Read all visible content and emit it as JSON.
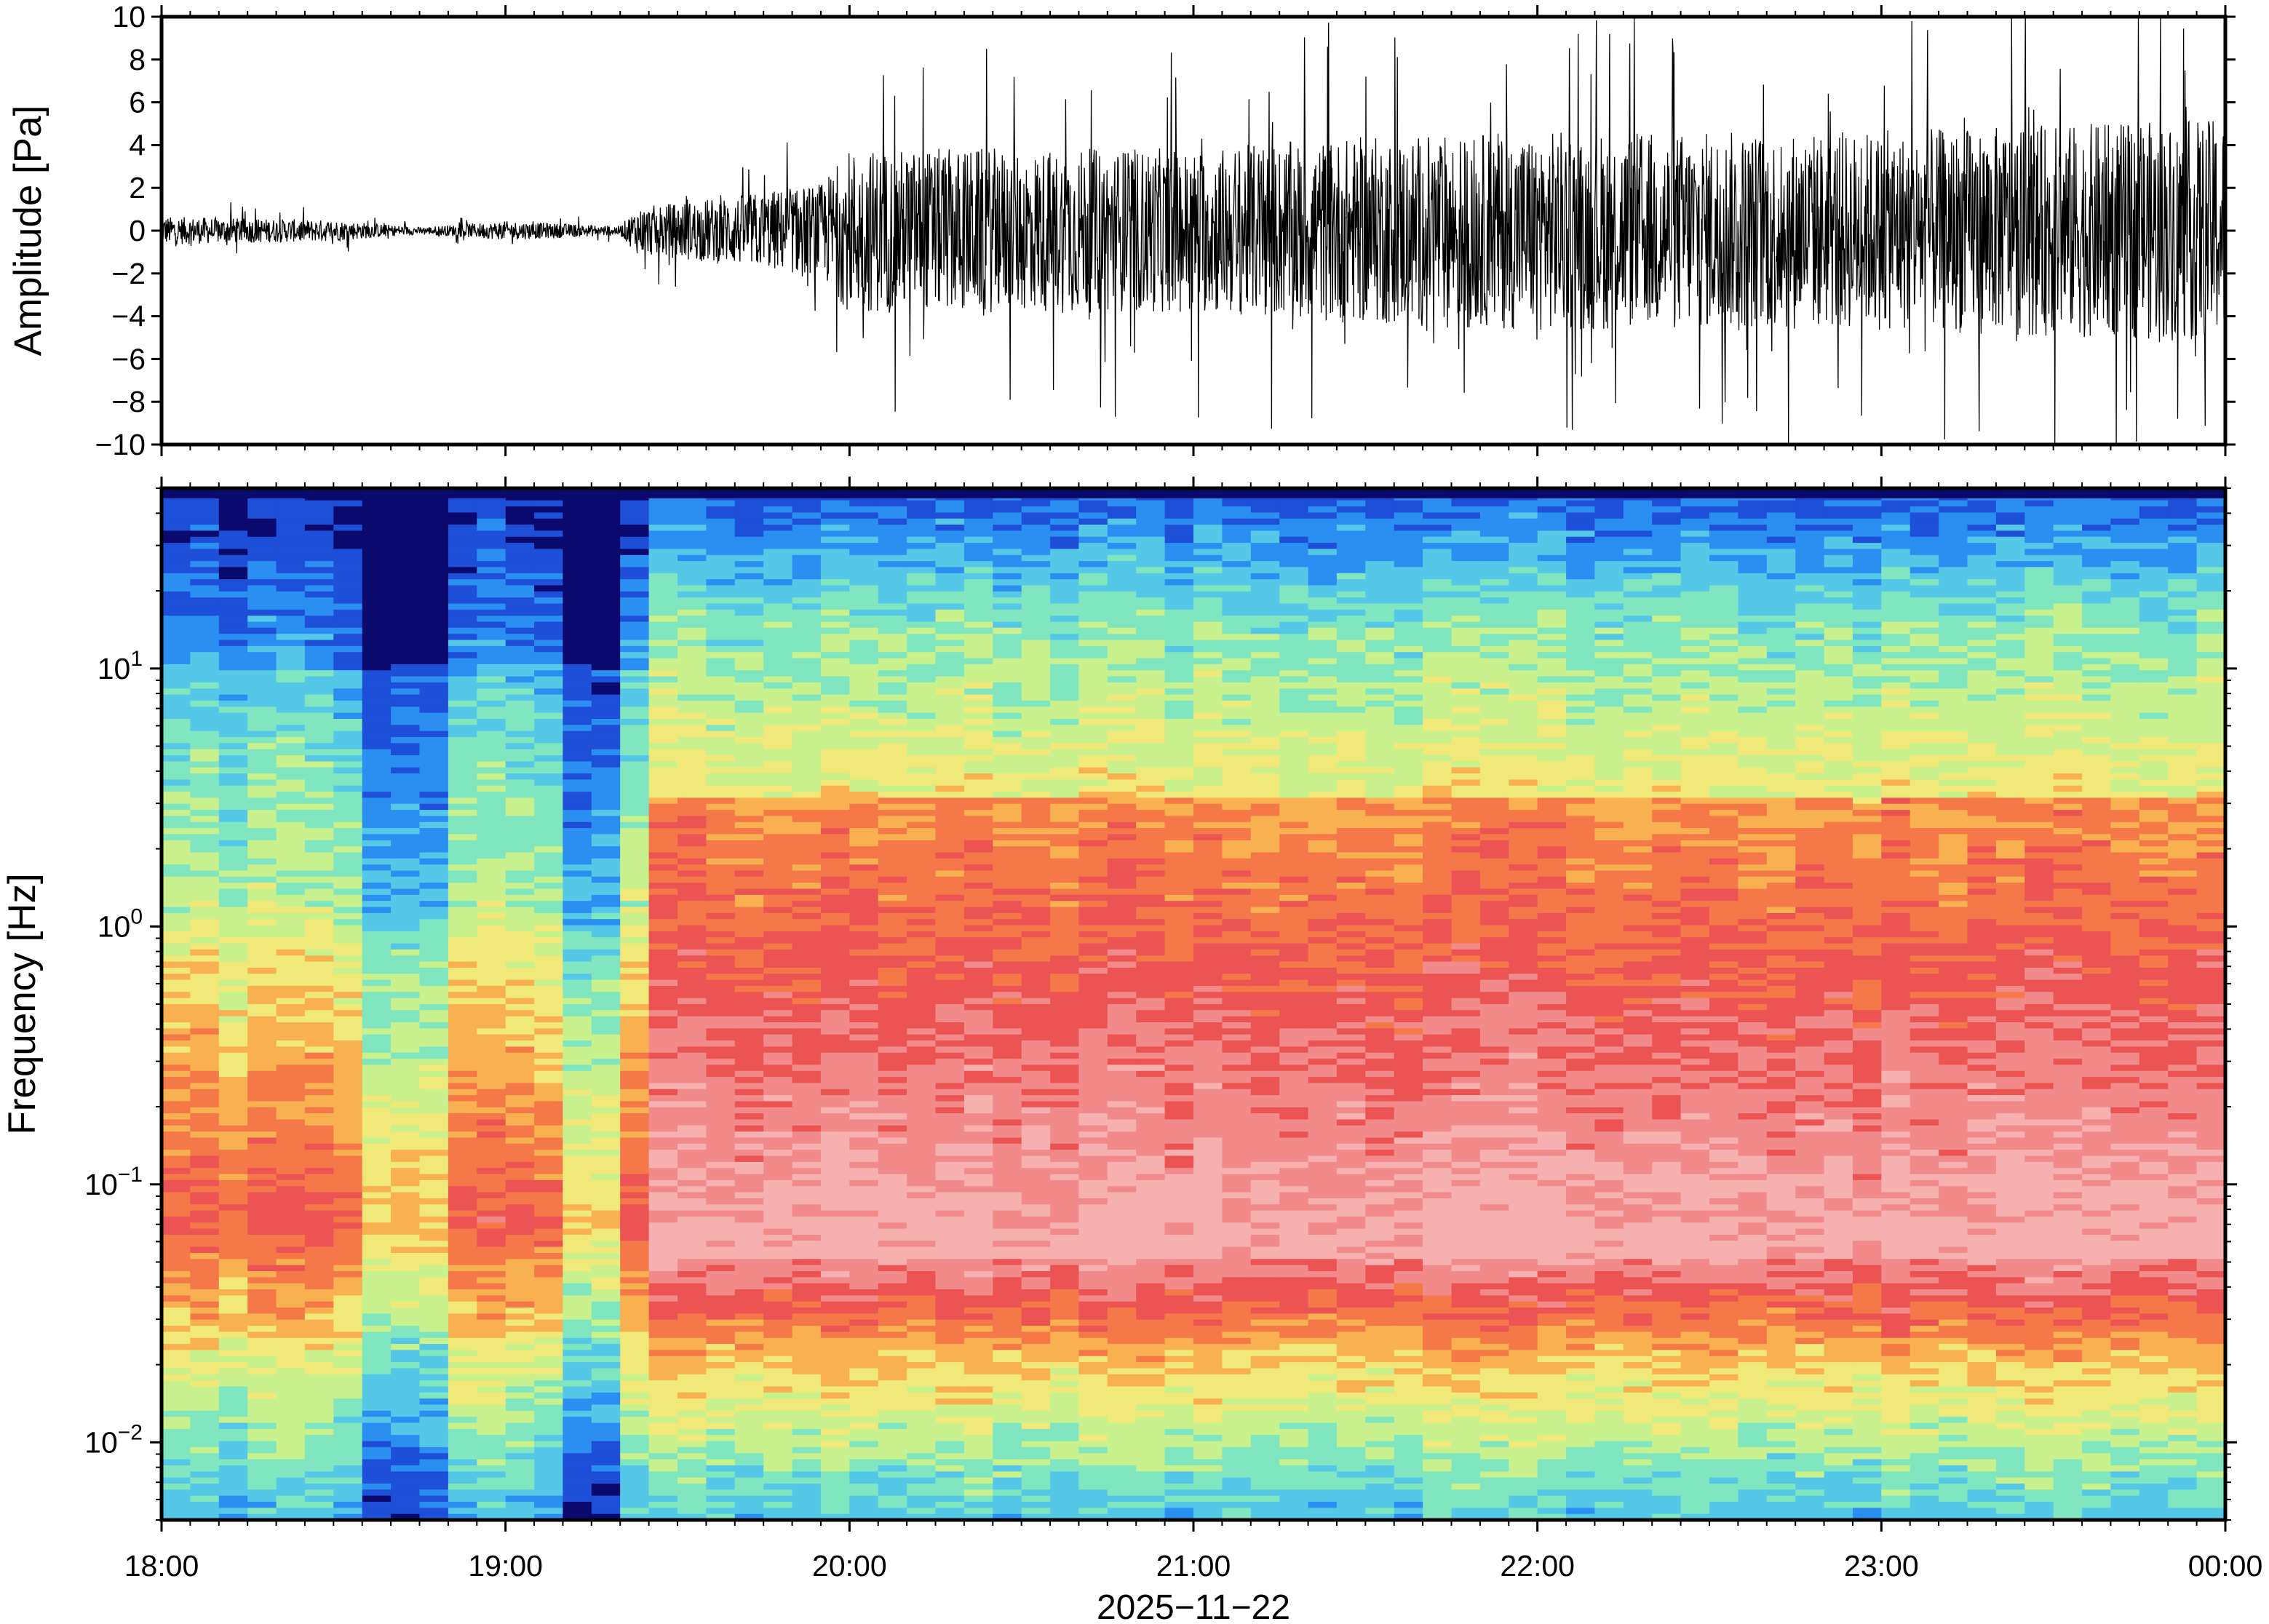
{
  "chart_data": [
    {
      "type": "line",
      "panel": "waveform",
      "ylabel": "Amplitude [Pa]",
      "ylim": [
        -10,
        10
      ],
      "yticks": [
        10,
        8,
        6,
        4,
        2,
        0,
        -2,
        -4,
        -6,
        -8,
        -10
      ],
      "ytick_labels": [
        "10",
        "8",
        "6",
        "4",
        "2",
        "0",
        "−2",
        "−4",
        "−6",
        "−8",
        "−10"
      ],
      "xlim": [
        "2025-11-22T18:00",
        "2025-11-23T00:00"
      ],
      "trace_color": "#000000",
      "envelope": {
        "x": [
          "18:00",
          "18:30",
          "18:45",
          "19:00",
          "19:20",
          "19:23",
          "19:40",
          "19:55",
          "20:00",
          "20:30",
          "21:00",
          "21:30",
          "22:00",
          "22:30",
          "23:00",
          "23:30",
          "00:00"
        ],
        "amplitude_pa": [
          1.2,
          0.9,
          0.3,
          0.8,
          0.4,
          2.0,
          3.0,
          4.0,
          7.0,
          7.0,
          7.0,
          8.0,
          8.5,
          8.5,
          8.5,
          9.0,
          9.5
        ]
      }
    },
    {
      "type": "heatmap",
      "panel": "spectrogram",
      "ylabel": "Frequency [Hz]",
      "yscale": "log",
      "ylim": [
        0.005,
        50
      ],
      "yticks": [
        10,
        1,
        0.1,
        0.01
      ],
      "ytick_labels": [
        {
          "base": "10",
          "exp": "1"
        },
        {
          "base": "10",
          "exp": "0"
        },
        {
          "base": "10",
          "exp": "−1"
        },
        {
          "base": "10",
          "exp": "−2"
        }
      ],
      "xtick_labels": [
        "18:00",
        "19:00",
        "20:00",
        "21:00",
        "22:00",
        "23:00",
        "00:00"
      ],
      "xlabel": "2025−11−22",
      "colormap": [
        "#0a0a6e",
        "#1e4fd8",
        "#2a8ff0",
        "#55c8e8",
        "#7fe6c0",
        "#c8f08c",
        "#f0e878",
        "#f8b050",
        "#f47848",
        "#ec5454",
        "#f28a8a",
        "#f6b0b0"
      ],
      "time_resolution_min": 5,
      "quiet_period": {
        "start": "18:00",
        "end": "19:23"
      }
    }
  ]
}
